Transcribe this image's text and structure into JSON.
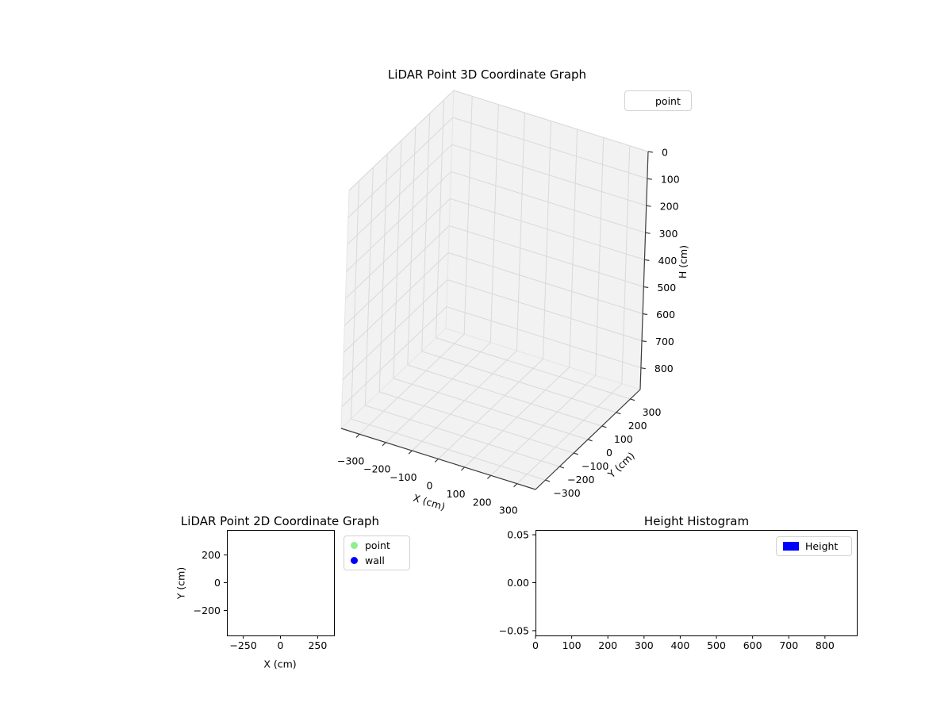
{
  "figure": {
    "background": "#ffffff"
  },
  "chart_data": [
    {
      "type": "scatter3d",
      "title": "LiDAR Point 3D Coordinate Graph",
      "xlabel": "X (cm)",
      "ylabel": "Y (cm)",
      "zlabel": "H (cm)",
      "xlim": [
        -370,
        370
      ],
      "ylim": [
        -370,
        370
      ],
      "zlim": [
        0,
        880
      ],
      "z_axis_inverted": true,
      "xticks": [
        -300,
        -200,
        -100,
        0,
        100,
        200,
        300
      ],
      "xtick_labels": [
        "−300",
        "−200",
        "−100",
        "0",
        "100",
        "200",
        "300"
      ],
      "yticks": [
        -300,
        -200,
        -100,
        0,
        100,
        200,
        300
      ],
      "ytick_labels": [
        "−300",
        "−200",
        "−100",
        "0",
        "100",
        "200",
        "300"
      ],
      "zticks": [
        0,
        100,
        200,
        300,
        400,
        500,
        600,
        700,
        800
      ],
      "ztick_labels": [
        "0",
        "100",
        "200",
        "300",
        "400",
        "500",
        "600",
        "700",
        "800"
      ],
      "grid": true,
      "colors": {
        "pane": "#f2f2f2",
        "pane_edge": "#e6e6e6",
        "grid": "#d9d9d9",
        "axis_line": "#3c3c3c"
      },
      "legend": [
        {
          "label": "point"
        }
      ],
      "series": [
        {
          "name": "point",
          "points": []
        }
      ]
    },
    {
      "type": "scatter",
      "title": "LiDAR Point 2D Coordinate Graph",
      "xlabel": "X (cm)",
      "ylabel": "Y (cm)",
      "xlim": [
        -360,
        360
      ],
      "ylim": [
        -380,
        380
      ],
      "xticks": [
        -250,
        0,
        250
      ],
      "xtick_labels": [
        "−250",
        "0",
        "250"
      ],
      "yticks": [
        -200,
        0,
        200
      ],
      "ytick_labels": [
        "−200",
        "0",
        "200"
      ],
      "grid": false,
      "legend": [
        {
          "label": "point",
          "color": "#90ee90"
        },
        {
          "label": "wall",
          "color": "#0000ff"
        }
      ],
      "series": [
        {
          "name": "point",
          "points": []
        },
        {
          "name": "wall",
          "points": []
        }
      ]
    },
    {
      "type": "histogram",
      "title": "Height Histogram",
      "xlabel": "",
      "ylabel": "",
      "xlim": [
        0,
        888
      ],
      "ylim": [
        -0.055,
        0.055
      ],
      "xticks": [
        0,
        100,
        200,
        300,
        400,
        500,
        600,
        700,
        800
      ],
      "xtick_labels": [
        "0",
        "100",
        "200",
        "300",
        "400",
        "500",
        "600",
        "700",
        "800"
      ],
      "yticks": [
        -0.05,
        0,
        0.05
      ],
      "ytick_labels": [
        "−0.05",
        "0.00",
        "0.05"
      ],
      "grid": false,
      "legend": [
        {
          "label": "Height",
          "color": "#0000ff"
        }
      ],
      "values": []
    }
  ]
}
